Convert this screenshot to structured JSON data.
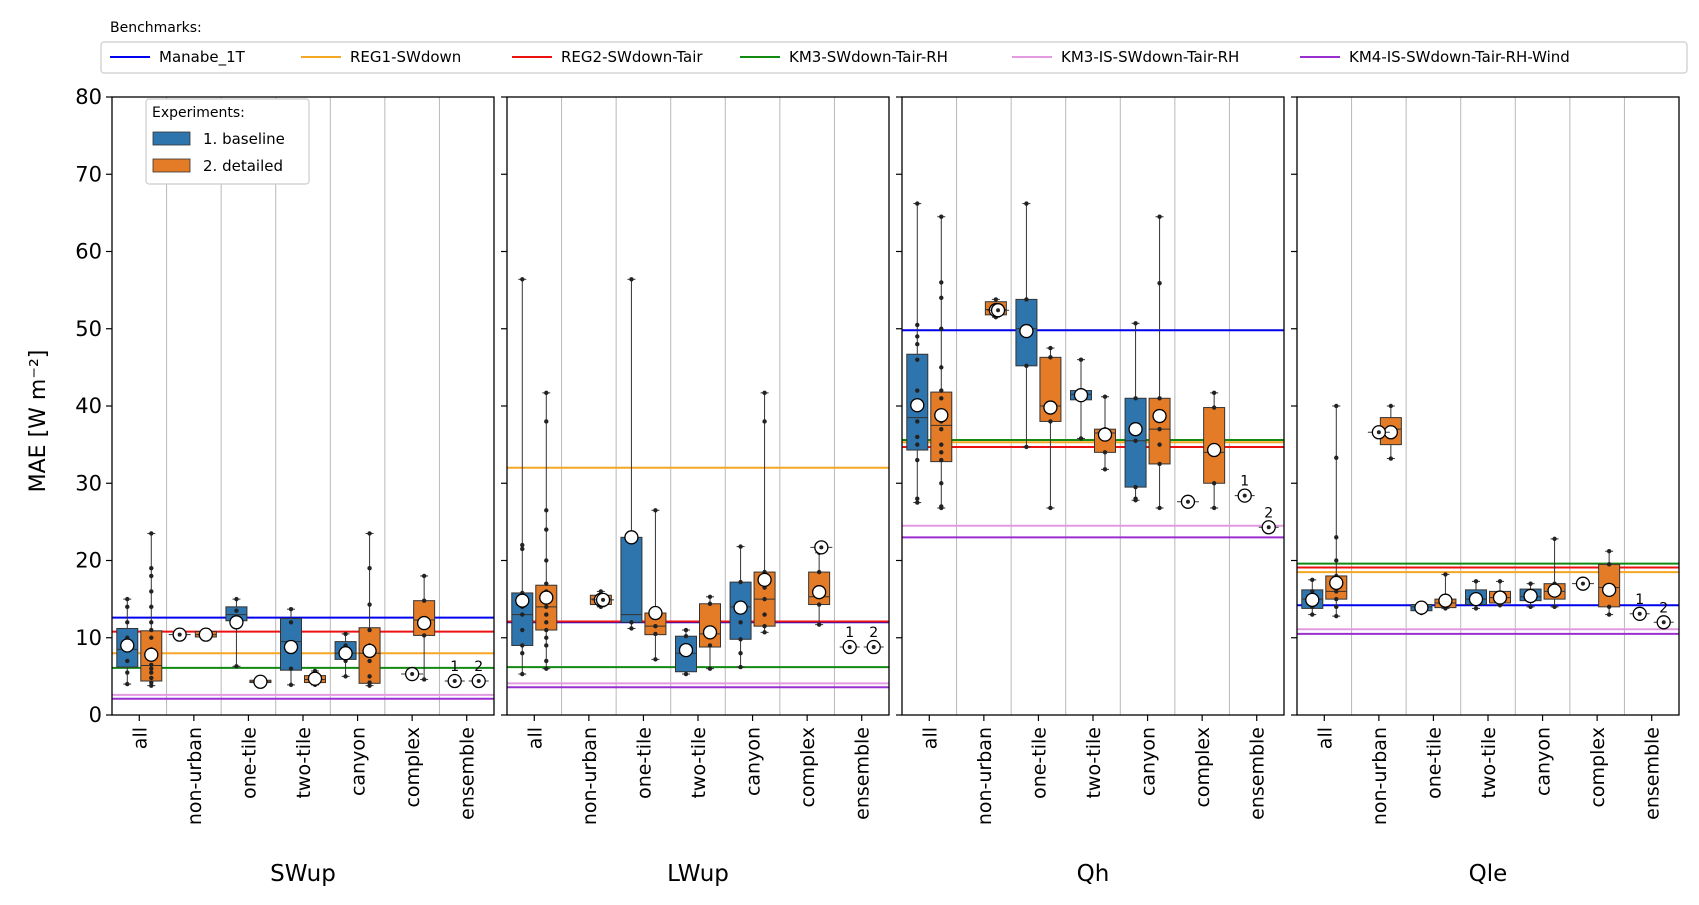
{
  "legends": {
    "benchmarks_title": "Benchmarks:",
    "experiments_title": "Experiments:"
  },
  "colors": {
    "baseline": "#2f75ad",
    "detailed": "#e47b27"
  },
  "chart_data": {
    "type": "box",
    "ylabel": "MAE [W m⁻²]",
    "ylim": [
      0,
      80
    ],
    "yticks": [
      0,
      10,
      20,
      30,
      40,
      50,
      60,
      70,
      80
    ],
    "grid": "vertical lines between categories",
    "categories": [
      "all",
      "non-urban",
      "one-tile",
      "two-tile",
      "canyon",
      "complex",
      "ensemble"
    ],
    "experiments": [
      {
        "name": "1. baseline",
        "color": "#2f75ad"
      },
      {
        "name": "2. detailed",
        "color": "#e47b27"
      }
    ],
    "benchmarks": [
      {
        "name": "Manabe_1T",
        "color": "#0000ee"
      },
      {
        "name": "REG1-SWdown",
        "color": "#f5a623"
      },
      {
        "name": "REG2-SWdown-Tair",
        "color": "#ee1111"
      },
      {
        "name": "KM3-SWdown-Tair-RH",
        "color": "#128a12"
      },
      {
        "name": "KM3-IS-SWdown-Tair-RH",
        "color": "#e39ae3"
      },
      {
        "name": "KM4-IS-SWdown-Tair-RH-Wind",
        "color": "#9a2fcf"
      }
    ],
    "ensemble_labels": [
      "1",
      "2"
    ],
    "panels": [
      {
        "title": "SWup",
        "benchmarks": [
          12.6,
          8.0,
          10.8,
          6.1,
          2.6,
          2.1
        ],
        "boxes": {
          "baseline": [
            {
              "q1": 6.2,
              "median": 8.5,
              "q3": 11.2,
              "wlo": 4.0,
              "whi": 15.0,
              "mean": 9.0,
              "points": [
                4,
                5.5,
                7,
                8.5,
                10,
                12,
                14,
                15
              ]
            },
            null,
            {
              "q1": 12.2,
              "median": 13.0,
              "q3": 14.0,
              "wlo": 6.3,
              "whi": 15.0,
              "mean": 12.0,
              "points": [
                6.3,
                12.5,
                13.5,
                15
              ]
            },
            {
              "q1": 5.8,
              "median": 9.5,
              "q3": 12.5,
              "wlo": 3.9,
              "whi": 13.7,
              "mean": 8.8,
              "points": [
                3.9,
                6,
                9,
                12,
                13.7
              ]
            },
            {
              "q1": 7.2,
              "median": 8.0,
              "q3": 9.5,
              "wlo": 5.0,
              "whi": 10.5,
              "mean": 8.0,
              "points": [
                5,
                7,
                8,
                9,
                10.5
              ]
            },
            null,
            {
              "median": 0,
              "mean": 0,
              "points": []
            }
          ],
          "detailed": [
            {
              "q1": 4.4,
              "median": 6.4,
              "q3": 10.9,
              "wlo": 3.8,
              "whi": 23.5,
              "mean": 7.8,
              "points": [
                3.8,
                4.2,
                4.8,
                5.5,
                6,
                6.5,
                7.5,
                8.5,
                10,
                11,
                12,
                14,
                16,
                18,
                19,
                23.5
              ]
            },
            {
              "q1": 10.1,
              "median": 10.4,
              "q3": 10.8,
              "wlo": 10.0,
              "whi": 10.9,
              "mean": 10.4,
              "points": [
                10.0,
                10.4,
                10.9
              ]
            },
            {
              "q1": 4.2,
              "median": 4.3,
              "q3": 4.5,
              "wlo": 4.1,
              "whi": 4.6,
              "mean": 4.3,
              "points": [
                4.1,
                4.6
              ]
            },
            {
              "q1": 4.2,
              "median": 4.6,
              "q3": 5.1,
              "wlo": 3.9,
              "whi": 5.7,
              "mean": 4.7,
              "points": [
                3.9,
                4.5,
                5.7
              ]
            },
            {
              "q1": 4.1,
              "median": 8.0,
              "q3": 11.3,
              "wlo": 3.8,
              "whi": 23.5,
              "mean": 8.3,
              "points": [
                3.8,
                4.2,
                5,
                7,
                8,
                9,
                11,
                14.3,
                19,
                23.5
              ]
            },
            {
              "q1": 10.3,
              "median": 12.3,
              "q3": 14.8,
              "wlo": 4.6,
              "whi": 18.0,
              "mean": 11.9,
              "points": [
                4.6,
                10.3,
                12,
                14.8,
                18
              ]
            },
            {
              "median": 0,
              "mean": 0,
              "points": []
            }
          ]
        },
        "singles": [
          {
            "value": 10.4,
            "offset": -0.26
          },
          {
            "value": 5.3,
            "offset": 0.0
          }
        ],
        "ensemble": [
          4.4,
          4.4
        ],
        "mean_overrides": {}
      },
      {
        "title": "LWup",
        "benchmarks": [
          12.0,
          32.0,
          12.1,
          6.2,
          4.1,
          3.6
        ],
        "boxes": {
          "baseline": [
            {
              "q1": 9.0,
              "median": 13.0,
              "q3": 15.8,
              "wlo": 5.3,
              "whi": 56.4,
              "mean": 14.8,
              "points": [
                5.3,
                8,
                9,
                11,
                13,
                14,
                15,
                15.8,
                21.5,
                22,
                56.4
              ]
            },
            null,
            {
              "q1": 12.0,
              "median": 13.0,
              "q3": 23.0,
              "wlo": 11.2,
              "whi": 56.4,
              "mean": 23.0,
              "points": [
                11.2,
                12,
                23,
                56.4
              ]
            },
            {
              "q1": 5.6,
              "median": 8.0,
              "q3": 10.2,
              "wlo": 5.3,
              "whi": 11.0,
              "mean": 8.4,
              "points": [
                5.3,
                8,
                10.2,
                11
              ]
            },
            {
              "q1": 9.8,
              "median": 14.0,
              "q3": 17.2,
              "wlo": 6.2,
              "whi": 21.8,
              "mean": 13.9,
              "points": [
                6.2,
                8,
                9.8,
                12,
                14,
                17.2,
                21.8
              ]
            },
            null,
            {
              "median": 0,
              "mean": 0,
              "points": []
            }
          ],
          "detailed": [
            {
              "q1": 11.0,
              "median": 14.0,
              "q3": 16.8,
              "wlo": 6.0,
              "whi": 41.7,
              "mean": 15.2,
              "points": [
                6,
                7,
                9,
                10,
                11,
                12,
                13,
                14,
                15,
                16,
                17,
                20,
                24,
                26.5,
                38,
                41.7
              ]
            },
            {
              "q1": 14.3,
              "median": 15.0,
              "q3": 15.5,
              "wlo": 14.0,
              "whi": 16.0,
              "mean": 14.9,
              "points": [
                14.0,
                15.0,
                16.0
              ]
            },
            {
              "q1": 10.4,
              "median": 11.5,
              "q3": 13.2,
              "wlo": 7.2,
              "whi": 26.5,
              "mean": 13.2,
              "points": [
                7.2,
                10.5,
                11.5,
                13,
                26.5
              ]
            },
            {
              "q1": 8.8,
              "median": 10.5,
              "q3": 14.4,
              "wlo": 6.0,
              "whi": 15.3,
              "mean": 10.7,
              "points": [
                6,
                9,
                10.5,
                14.4,
                15.3
              ]
            },
            {
              "q1": 11.5,
              "median": 15.0,
              "q3": 18.5,
              "wlo": 10.7,
              "whi": 41.7,
              "mean": 17.5,
              "points": [
                10.7,
                11.5,
                13,
                15,
                16.5,
                18.5,
                38,
                41.7
              ]
            },
            {
              "q1": 14.3,
              "median": 15.3,
              "q3": 18.5,
              "wlo": 11.7,
              "whi": 21.0,
              "mean": 15.9,
              "points": [
                11.7,
                14.3,
                15.3,
                18.5,
                21
              ]
            },
            {
              "median": 0,
              "mean": 0,
              "points": []
            }
          ]
        },
        "singles": [
          {
            "value": 14.9,
            "offset": 0.26
          },
          {
            "value": 21.7,
            "offset": 0.26
          }
        ],
        "ensemble": [
          8.8,
          8.8
        ],
        "mean_overrides": {}
      },
      {
        "title": "Qh",
        "benchmarks": [
          49.8,
          35.3,
          34.7,
          35.6,
          24.5,
          23.0
        ],
        "boxes": {
          "baseline": [
            {
              "q1": 34.3,
              "median": 38.5,
              "q3": 46.7,
              "wlo": 27.5,
              "whi": 66.2,
              "mean": 40.1,
              "points": [
                27.5,
                28,
                33,
                35,
                36,
                38,
                40,
                42,
                46,
                48,
                49,
                50.5,
                66.2
              ]
            },
            null,
            {
              "q1": 45.2,
              "median": 50.0,
              "q3": 53.8,
              "wlo": 34.7,
              "whi": 66.2,
              "mean": 49.7,
              "points": [
                34.7,
                45.2,
                50,
                53.8,
                66.2
              ]
            },
            {
              "q1": 40.8,
              "median": 41.5,
              "q3": 42.0,
              "wlo": 35.8,
              "whi": 46.0,
              "mean": 41.4,
              "points": [
                35.8,
                41,
                42,
                46
              ]
            },
            {
              "q1": 29.5,
              "median": 35.5,
              "q3": 41.0,
              "wlo": 27.8,
              "whi": 50.7,
              "mean": 37.0,
              "points": [
                27.8,
                28,
                29.5,
                35.5,
                41,
                50.7
              ]
            },
            null,
            {
              "median": 0,
              "mean": 0,
              "points": []
            }
          ],
          "detailed": [
            {
              "q1": 32.8,
              "median": 37.5,
              "q3": 41.8,
              "wlo": 26.8,
              "whi": 64.5,
              "mean": 38.8,
              "points": [
                26.8,
                27,
                30,
                33,
                34,
                35,
                37,
                38,
                39,
                41,
                42,
                45,
                50,
                54,
                56,
                64.5
              ]
            },
            {
              "q1": 51.8,
              "median": 52.5,
              "q3": 53.5,
              "wlo": 51.5,
              "whi": 53.8,
              "mean": 52.4,
              "points": [
                51.5,
                52.5,
                53.8
              ]
            },
            {
              "q1": 38.0,
              "median": 40.0,
              "q3": 46.3,
              "wlo": 26.8,
              "whi": 47.5,
              "mean": 39.8,
              "points": [
                26.8,
                38,
                40,
                46.3,
                47.5
              ]
            },
            {
              "q1": 34.0,
              "median": 36.5,
              "q3": 37.0,
              "wlo": 31.8,
              "whi": 41.2,
              "mean": 36.3,
              "points": [
                31.8,
                34,
                36.5,
                37,
                41.2
              ]
            },
            {
              "q1": 32.5,
              "median": 37.0,
              "q3": 41.0,
              "wlo": 26.8,
              "whi": 64.5,
              "mean": 38.7,
              "points": [
                26.8,
                32.5,
                35,
                37,
                39,
                41,
                55.9,
                64.5
              ]
            },
            {
              "q1": 30.0,
              "median": 34.0,
              "q3": 39.8,
              "wlo": 26.8,
              "whi": 41.7,
              "mean": 34.3,
              "points": [
                26.8,
                30,
                34,
                39.8,
                41.7
              ]
            },
            {
              "median": 0,
              "mean": 0,
              "points": []
            }
          ]
        },
        "singles": [
          {
            "value": 52.4,
            "offset": 0.26
          },
          {
            "value": 27.6,
            "offset": -0.26
          }
        ],
        "ensemble": [
          28.4,
          24.3
        ],
        "mean_overrides": {}
      },
      {
        "title": "Qle",
        "benchmarks": [
          14.2,
          18.5,
          19.1,
          19.6,
          11.1,
          10.5
        ],
        "boxes": {
          "baseline": [
            {
              "q1": 13.8,
              "median": 15.0,
              "q3": 16.2,
              "wlo": 13.0,
              "whi": 17.5,
              "mean": 14.9,
              "points": [
                13,
                14,
                15,
                16,
                17.5
              ]
            },
            null,
            {
              "q1": 13.5,
              "median": 14.0,
              "q3": 14.3,
              "wlo": 13.2,
              "whi": 14.5,
              "mean": 13.9,
              "points": [
                13.2,
                14,
                14.5
              ]
            },
            {
              "q1": 14.3,
              "median": 15.0,
              "q3": 16.2,
              "wlo": 13.8,
              "whi": 17.3,
              "mean": 15.0,
              "points": [
                13.8,
                15,
                17.3
              ]
            },
            {
              "q1": 14.8,
              "median": 15.3,
              "q3": 16.3,
              "wlo": 14.0,
              "whi": 17.0,
              "mean": 15.4,
              "points": [
                14,
                15.3,
                17
              ]
            },
            null,
            {
              "median": 0,
              "mean": 0,
              "points": []
            }
          ],
          "detailed": [
            {
              "q1": 15.0,
              "median": 16.0,
              "q3": 18.0,
              "wlo": 12.8,
              "whi": 40.0,
              "mean": 17.1,
              "points": [
                12.8,
                14,
                15,
                16,
                17,
                18,
                20,
                23,
                33.3,
                40
              ]
            },
            {
              "q1": 35.0,
              "median": 37.0,
              "q3": 38.5,
              "wlo": 33.2,
              "whi": 40.0,
              "mean": 36.6,
              "points": [
                33.2,
                37,
                40
              ]
            },
            {
              "q1": 13.9,
              "median": 14.5,
              "q3": 15.0,
              "wlo": 13.8,
              "whi": 18.2,
              "mean": 14.8,
              "points": [
                13.8,
                15,
                18.2
              ]
            },
            {
              "q1": 14.5,
              "median": 15.2,
              "q3": 16.0,
              "wlo": 14.2,
              "whi": 17.3,
              "mean": 15.2,
              "points": [
                14.2,
                15.2,
                17.3
              ]
            },
            {
              "q1": 15.0,
              "median": 16.0,
              "q3": 17.0,
              "wlo": 14.0,
              "whi": 22.8,
              "mean": 16.1,
              "points": [
                14,
                16,
                17,
                22.8
              ]
            },
            {
              "q1": 14.0,
              "median": 16.5,
              "q3": 19.5,
              "wlo": 13.0,
              "whi": 21.2,
              "mean": 16.2,
              "points": [
                13,
                14,
                16.5,
                19.5,
                21.2
              ]
            },
            {
              "median": 0,
              "mean": 0,
              "points": []
            }
          ]
        },
        "singles": [
          {
            "value": 36.6,
            "offset": 0.0
          },
          {
            "value": 17.0,
            "offset": -0.26
          }
        ],
        "ensemble": [
          13.1,
          12.0
        ],
        "mean_overrides": {}
      }
    ]
  }
}
